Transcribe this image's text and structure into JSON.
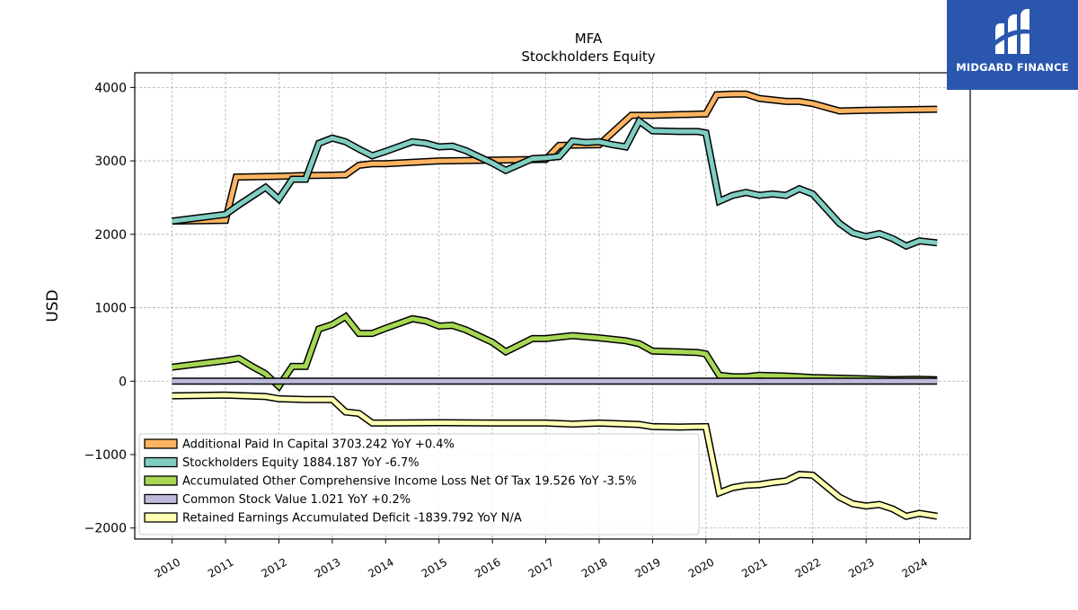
{
  "logo": {
    "text": "MIDGARD FINANCE",
    "bg_color": "#2a56ad"
  },
  "chart_data": {
    "type": "line",
    "title": "MFA",
    "subtitle": "Stockholders  Equity",
    "xlabel": "",
    "ylabel": "USD",
    "xlim": [
      2009.3,
      2024.95
    ],
    "ylim": [
      -2150,
      4200
    ],
    "yticks": [
      -2000,
      -1000,
      0,
      1000,
      2000,
      3000,
      4000
    ],
    "ytick_labels": [
      "−2000",
      "−1000",
      "0",
      "1000",
      "2000",
      "3000",
      "4000"
    ],
    "xticks": [
      2010,
      2011,
      2012,
      2013,
      2014,
      2015,
      2016,
      2017,
      2018,
      2019,
      2020,
      2021,
      2022,
      2023,
      2024
    ],
    "xtick_labels": [
      "2010",
      "2011",
      "2012",
      "2013",
      "2014",
      "2015",
      "2016",
      "2017",
      "2018",
      "2019",
      "2020",
      "2021",
      "2022",
      "2023",
      "2024"
    ],
    "grid": true,
    "legend_position": "lower-left",
    "series": [
      {
        "name": "Additional Paid In Capital",
        "legend": "Additional Paid In Capital  3703.242 YoY +0.4%",
        "color": "#fdb462",
        "points": [
          [
            2010.0,
            2180
          ],
          [
            2011.0,
            2190
          ],
          [
            2011.2,
            2780
          ],
          [
            2012.0,
            2790
          ],
          [
            2012.5,
            2800
          ],
          [
            2013.0,
            2805
          ],
          [
            2013.25,
            2810
          ],
          [
            2013.5,
            2940
          ],
          [
            2013.75,
            2960
          ],
          [
            2014.0,
            2960
          ],
          [
            2015.0,
            3000
          ],
          [
            2016.0,
            3010
          ],
          [
            2017.0,
            3020
          ],
          [
            2017.25,
            3210
          ],
          [
            2018.0,
            3220
          ],
          [
            2018.6,
            3620
          ],
          [
            2019.0,
            3620
          ],
          [
            2020.0,
            3640
          ],
          [
            2020.2,
            3900
          ],
          [
            2020.5,
            3910
          ],
          [
            2020.75,
            3910
          ],
          [
            2021.0,
            3850
          ],
          [
            2021.5,
            3810
          ],
          [
            2021.75,
            3810
          ],
          [
            2022.0,
            3780
          ],
          [
            2022.5,
            3680
          ],
          [
            2023.0,
            3690
          ],
          [
            2024.0,
            3700
          ],
          [
            2024.33,
            3703.242
          ]
        ]
      },
      {
        "name": "Stockholders Equity",
        "legend": "Stockholders Equity  1884.187 YoY -6.7%",
        "color": "#80cdc1",
        "points": [
          [
            2010.0,
            2180
          ],
          [
            2011.0,
            2270
          ],
          [
            2011.25,
            2400
          ],
          [
            2011.75,
            2640
          ],
          [
            2012.0,
            2480
          ],
          [
            2012.25,
            2750
          ],
          [
            2012.5,
            2750
          ],
          [
            2012.75,
            3240
          ],
          [
            2013.0,
            3310
          ],
          [
            2013.25,
            3260
          ],
          [
            2013.5,
            3160
          ],
          [
            2013.75,
            3070
          ],
          [
            2014.0,
            3130
          ],
          [
            2014.5,
            3260
          ],
          [
            2014.75,
            3240
          ],
          [
            2015.0,
            3190
          ],
          [
            2015.25,
            3200
          ],
          [
            2015.5,
            3140
          ],
          [
            2016.0,
            2970
          ],
          [
            2016.25,
            2870
          ],
          [
            2016.75,
            3030
          ],
          [
            2017.0,
            3040
          ],
          [
            2017.25,
            3060
          ],
          [
            2017.5,
            3270
          ],
          [
            2017.75,
            3250
          ],
          [
            2018.0,
            3260
          ],
          [
            2018.25,
            3220
          ],
          [
            2018.5,
            3190
          ],
          [
            2018.75,
            3540
          ],
          [
            2019.0,
            3410
          ],
          [
            2019.5,
            3400
          ],
          [
            2019.85,
            3400
          ],
          [
            2020.0,
            3380
          ],
          [
            2020.25,
            2450
          ],
          [
            2020.5,
            2530
          ],
          [
            2020.75,
            2570
          ],
          [
            2021.0,
            2530
          ],
          [
            2021.25,
            2550
          ],
          [
            2021.5,
            2530
          ],
          [
            2021.75,
            2620
          ],
          [
            2022.0,
            2550
          ],
          [
            2022.5,
            2150
          ],
          [
            2022.75,
            2020
          ],
          [
            2023.0,
            1970
          ],
          [
            2023.25,
            2010
          ],
          [
            2023.5,
            1940
          ],
          [
            2023.75,
            1840
          ],
          [
            2024.0,
            1910
          ],
          [
            2024.33,
            1884.187
          ]
        ]
      },
      {
        "name": "Accumulated Other Comprehensive Income Loss Net Of Tax",
        "legend": "Accumulated Other Comprehensive Income Loss Net Of Tax  19.526 YoY -3.5%",
        "color": "#a6d854",
        "points": [
          [
            2010.0,
            190
          ],
          [
            2011.0,
            280
          ],
          [
            2011.25,
            310
          ],
          [
            2011.5,
            200
          ],
          [
            2011.75,
            100
          ],
          [
            2012.0,
            -70
          ],
          [
            2012.25,
            200
          ],
          [
            2012.5,
            200
          ],
          [
            2012.75,
            710
          ],
          [
            2013.0,
            770
          ],
          [
            2013.25,
            880
          ],
          [
            2013.5,
            650
          ],
          [
            2013.75,
            650
          ],
          [
            2014.0,
            720
          ],
          [
            2014.5,
            850
          ],
          [
            2014.75,
            820
          ],
          [
            2015.0,
            750
          ],
          [
            2015.25,
            760
          ],
          [
            2015.5,
            700
          ],
          [
            2016.0,
            530
          ],
          [
            2016.25,
            400
          ],
          [
            2016.75,
            580
          ],
          [
            2017.0,
            580
          ],
          [
            2017.5,
            620
          ],
          [
            2018.0,
            590
          ],
          [
            2018.5,
            550
          ],
          [
            2018.75,
            510
          ],
          [
            2019.0,
            410
          ],
          [
            2019.5,
            400
          ],
          [
            2019.85,
            390
          ],
          [
            2020.0,
            370
          ],
          [
            2020.25,
            80
          ],
          [
            2020.5,
            60
          ],
          [
            2020.75,
            60
          ],
          [
            2021.0,
            80
          ],
          [
            2021.5,
            70
          ],
          [
            2022.0,
            50
          ],
          [
            2022.5,
            40
          ],
          [
            2023.0,
            30
          ],
          [
            2023.5,
            20
          ],
          [
            2024.0,
            25
          ],
          [
            2024.33,
            19.526
          ]
        ]
      },
      {
        "name": "Common Stock Value",
        "legend": "Common Stock Value  1.021 YoY +0.2%",
        "color": "#bebada",
        "points": [
          [
            2010.0,
            1
          ],
          [
            2024.33,
            1.021
          ]
        ]
      },
      {
        "name": "Retained Earnings Accumulated Deficit",
        "legend": "Retained Earnings Accumulated Deficit  -1839.792 YoY N/A",
        "color": "#ffffb3",
        "points": [
          [
            2010.0,
            -200
          ],
          [
            2011.0,
            -190
          ],
          [
            2011.75,
            -210
          ],
          [
            2012.0,
            -240
          ],
          [
            2012.5,
            -250
          ],
          [
            2013.0,
            -250
          ],
          [
            2013.25,
            -420
          ],
          [
            2013.5,
            -440
          ],
          [
            2013.75,
            -570
          ],
          [
            2014.0,
            -570
          ],
          [
            2015.0,
            -565
          ],
          [
            2016.0,
            -570
          ],
          [
            2017.0,
            -570
          ],
          [
            2017.5,
            -585
          ],
          [
            2018.0,
            -570
          ],
          [
            2018.75,
            -590
          ],
          [
            2019.0,
            -620
          ],
          [
            2019.5,
            -625
          ],
          [
            2020.0,
            -620
          ],
          [
            2020.25,
            -1520
          ],
          [
            2020.5,
            -1450
          ],
          [
            2020.75,
            -1420
          ],
          [
            2021.0,
            -1410
          ],
          [
            2021.25,
            -1380
          ],
          [
            2021.5,
            -1360
          ],
          [
            2021.75,
            -1270
          ],
          [
            2022.0,
            -1280
          ],
          [
            2022.5,
            -1580
          ],
          [
            2022.75,
            -1670
          ],
          [
            2023.0,
            -1700
          ],
          [
            2023.25,
            -1680
          ],
          [
            2023.5,
            -1740
          ],
          [
            2023.75,
            -1840
          ],
          [
            2024.0,
            -1800
          ],
          [
            2024.33,
            -1839.792
          ]
        ]
      }
    ]
  }
}
